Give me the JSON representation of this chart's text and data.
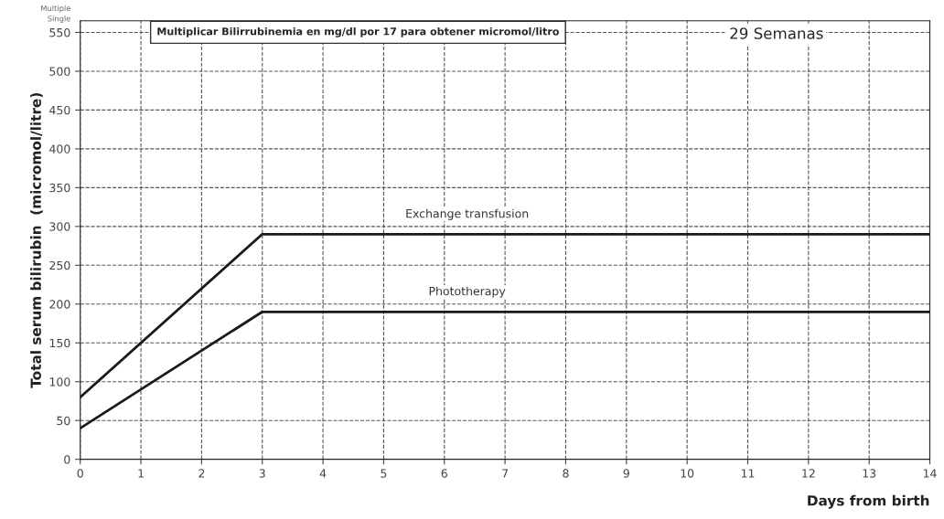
{
  "chart_data": {
    "type": "line",
    "title": "Multiplicar Bilirrubinemia en mg/dl por 17 para obtener micromol/litro",
    "subtitle": "29 Semanas",
    "xlabel": "Days from birth",
    "ylabel": "Total serum bilirubin  (micromol/litre)",
    "series": [
      {
        "name": "Exchange transfusion",
        "color": "#1a1a1a",
        "x": [
          0,
          3,
          14
        ],
        "values": [
          80,
          290,
          290
        ]
      },
      {
        "name": "Phototherapy",
        "color": "#1a1a1a",
        "x": [
          0,
          3,
          14
        ],
        "values": [
          40,
          190,
          190
        ]
      }
    ],
    "annotations": [
      "Multiple",
      "Single"
    ],
    "xlim": [
      0,
      14
    ],
    "xticks": [
      0,
      1,
      2,
      3,
      4,
      5,
      6,
      7,
      8,
      9,
      10,
      11,
      12,
      13,
      14
    ],
    "ylim": [
      0,
      565
    ],
    "yticks": [
      0,
      50,
      100,
      150,
      200,
      250,
      300,
      350,
      400,
      450,
      500,
      550
    ],
    "grid": true,
    "marker": "none",
    "line_style": "solid"
  }
}
